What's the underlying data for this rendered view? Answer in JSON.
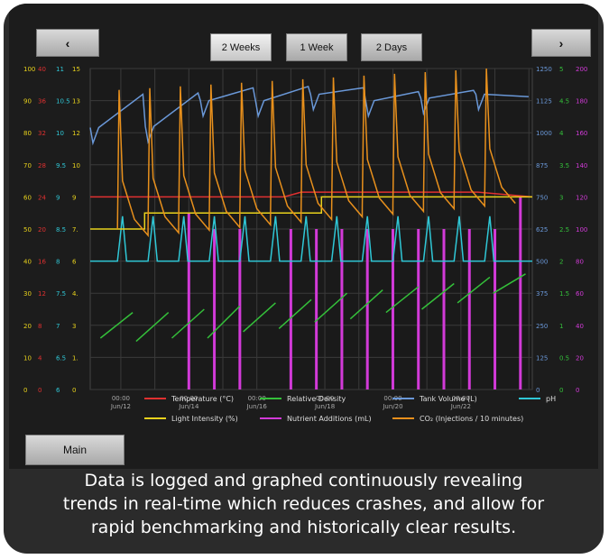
{
  "toolbar": {
    "prev_label": "‹",
    "next_label": "›",
    "ranges": [
      "2 Weeks",
      "1 Week",
      "2 Days"
    ],
    "selected_range": "2 Weeks"
  },
  "main_button": "Main",
  "caption": {
    "line1": "Data is logged and graphed continuously revealing",
    "line2": "trends in real-time which reduces crashes, and allow for",
    "line3": "rapid benchmarking and historically clear results."
  },
  "chart_data": {
    "type": "line",
    "x_ticks": [
      {
        "time": "00:00",
        "date": "Jun/12",
        "day": 12
      },
      {
        "time": "00:00",
        "date": "Jun/14",
        "day": 14
      },
      {
        "time": "00:00",
        "date": "Jun/16",
        "day": 16
      },
      {
        "time": "00:00",
        "date": "Jun/18",
        "day": 18
      },
      {
        "time": "00:00",
        "date": "Jun/20",
        "day": 20
      },
      {
        "time": "00:00",
        "date": "Jun/22",
        "day": 22
      }
    ],
    "x_range_days": [
      11.1,
      24.1
    ],
    "grid": true,
    "left_axes": [
      {
        "series": "Light Intensity (%)",
        "color": "#e8d21c",
        "ticks": [
          "0",
          "10",
          "20",
          "30",
          "40",
          "50",
          "60",
          "70",
          "80",
          "90",
          "100"
        ]
      },
      {
        "series": "Temperature (°C)",
        "color": "#e03030",
        "ticks": [
          "0",
          "4",
          "8",
          "12",
          "16",
          "20",
          "24",
          "28",
          "32",
          "36",
          "40"
        ]
      },
      {
        "series": "pH",
        "color": "#2fc7d6",
        "ticks": [
          "6",
          "6.5",
          "7",
          "7.5",
          "8",
          "8.5",
          "9",
          "9.5",
          "10",
          "10.5",
          "11"
        ]
      },
      {
        "series": "Light Intensity (%) 2",
        "color": "#e8d21c",
        "ticks": [
          "0",
          "1.",
          "3",
          "4.",
          "6",
          "7.",
          "9",
          "10",
          "12",
          "13",
          "15"
        ]
      }
    ],
    "right_axes": [
      {
        "series": "Tank Volume (L)",
        "color": "#6a98d8",
        "ticks": [
          "0",
          "125",
          "250",
          "375",
          "500",
          "625",
          "750",
          "875",
          "1000",
          "1125",
          "1250"
        ]
      },
      {
        "series": "Relative Density",
        "color": "#34c03a",
        "ticks": [
          "0",
          "0.5",
          "1",
          "1.5",
          "2",
          "2.5",
          "3",
          "3.5",
          "4",
          "4.5",
          "5"
        ]
      },
      {
        "series": "Nutrient Additions (mL)",
        "color": "#d23ad8",
        "ticks": [
          "0",
          "20",
          "40",
          "60",
          "80",
          "100",
          "120",
          "140",
          "160",
          "180",
          "200"
        ]
      }
    ],
    "y_ratio_range": [
      0,
      100
    ],
    "series": [
      {
        "name": "Temperature (°C)",
        "color": "#e03030",
        "values": [
          [
            11.1,
            24
          ],
          [
            16.8,
            24
          ],
          [
            17.3,
            24.6
          ],
          [
            22.5,
            24.6
          ],
          [
            24.1,
            24
          ]
        ]
      },
      {
        "name": "Light Intensity (%)",
        "color": "#e8d21c",
        "values": [
          [
            11.1,
            50
          ],
          [
            12.7,
            50
          ],
          [
            12.7,
            55
          ],
          [
            17.9,
            55
          ],
          [
            17.9,
            60
          ],
          [
            24.1,
            60
          ]
        ]
      },
      {
        "name": "pH",
        "color": "#2fc7d6",
        "values": [
          [
            11.1,
            8
          ],
          [
            24.1,
            8
          ]
        ]
      },
      {
        "name": "Tank Volume (L)",
        "color": "#6a98d8",
        "pattern": "sawtooth",
        "cycle_start": [
          1020,
          1025,
          1125,
          1125,
          1150,
          1125,
          1135,
          1150
        ],
        "cycle_end": [
          1150,
          1155,
          1175,
          1180,
          1175,
          1160,
          1165,
          1140
        ]
      },
      {
        "name": "Relative Density",
        "color": "#34c03a",
        "pattern": "sawtooth",
        "cycle_start": [
          0.8,
          0.75,
          0.8,
          0.8,
          0.9,
          0.95,
          1.05,
          1.1,
          1.2,
          1.25,
          1.35,
          1.5
        ],
        "cycle_end": [
          1.2,
          1.2,
          1.25,
          1.3,
          1.35,
          1.4,
          1.5,
          1.55,
          1.6,
          1.65,
          1.75,
          1.8
        ]
      },
      {
        "name": "Nutrient Additions (mL)",
        "color": "#d23ad8",
        "pattern": "pulses",
        "pulse_heights": [
          0,
          0,
          110,
          100,
          100,
          0,
          100,
          100,
          100,
          100,
          100,
          100,
          100,
          100,
          100,
          120
        ]
      },
      {
        "name": "CO₂ (Injections / 10 minutes)",
        "color": "#e8901c",
        "pattern": "spikes",
        "baseline_range": [
          11.5,
          7
        ],
        "peak_range": [
          14,
          15
        ]
      }
    ],
    "legend": {
      "placement": "bottom",
      "items": [
        {
          "label": "Temperature (°C)",
          "color": "#e03030"
        },
        {
          "label": "Relative Density",
          "color": "#34c03a"
        },
        {
          "label": "Tank Volume (L)",
          "color": "#6a98d8"
        },
        {
          "label": "pH",
          "color": "#2fc7d6"
        },
        {
          "label": "Light Intensity (%)",
          "color": "#e8d21c"
        },
        {
          "label": "Nutrient Additions (mL)",
          "color": "#d23ad8"
        },
        {
          "label": "CO₂ (Injections / 10 minutes)",
          "color": "#e8901c"
        }
      ]
    }
  }
}
